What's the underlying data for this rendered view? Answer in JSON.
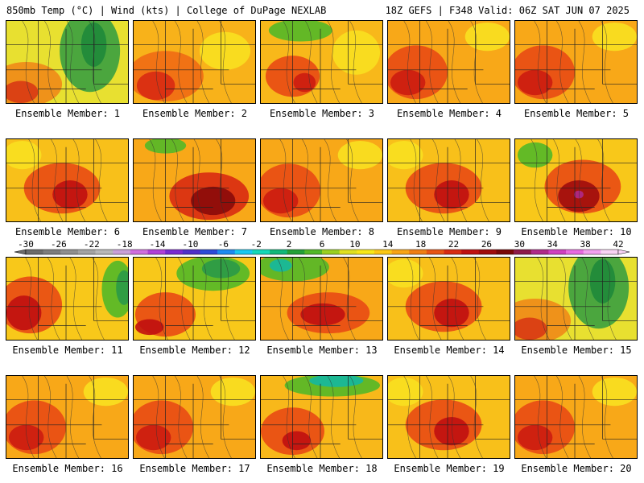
{
  "header": {
    "left": "850mb Temp (°C) | Wind (kts) | College of DuPage NEXLAB",
    "right": "18Z GEFS | F348 Valid: 06Z SAT JUN 07 2025"
  },
  "members": [
    {
      "label": "Ensemble Member: 1",
      "theme": "cool-ne"
    },
    {
      "label": "Ensemble Member: 2",
      "theme": "warm-sw"
    },
    {
      "label": "Ensemble Member: 3",
      "theme": "mixed"
    },
    {
      "label": "Ensemble Member: 4",
      "theme": "warm-w"
    },
    {
      "label": "Ensemble Member: 5",
      "theme": "warm-w"
    },
    {
      "label": "Ensemble Member: 6",
      "theme": "warm-c"
    },
    {
      "label": "Ensemble Member: 7",
      "theme": "hot-c"
    },
    {
      "label": "Ensemble Member: 8",
      "theme": "warm-w"
    },
    {
      "label": "Ensemble Member: 9",
      "theme": "warm-c"
    },
    {
      "label": "Ensemble Member: 10",
      "theme": "hot-se"
    },
    {
      "label": "Ensemble Member: 11",
      "theme": "cool-e"
    },
    {
      "label": "Ensemble Member: 12",
      "theme": "cool-n"
    },
    {
      "label": "Ensemble Member: 13",
      "theme": "cool-nw"
    },
    {
      "label": "Ensemble Member: 14",
      "theme": "warm-c"
    },
    {
      "label": "Ensemble Member: 15",
      "theme": "cool-ne"
    },
    {
      "label": "Ensemble Member: 16",
      "theme": "warm-w"
    },
    {
      "label": "Ensemble Member: 17",
      "theme": "warm-w"
    },
    {
      "label": "Ensemble Member: 18",
      "theme": "cool-n2"
    },
    {
      "label": "Ensemble Member: 19",
      "theme": "warm-c"
    },
    {
      "label": "Ensemble Member: 20",
      "theme": "warm-w"
    }
  ],
  "colorbar": {
    "tick_labels": [
      "-30",
      "-26",
      "-22",
      "-18",
      "-14",
      "-10",
      "-6",
      "-2",
      "2",
      "6",
      "10",
      "14",
      "18",
      "22",
      "26",
      "30",
      "34",
      "38",
      "42"
    ],
    "colors": [
      "#6b6b6b",
      "#7d7d7d",
      "#8f8f8f",
      "#a3a3a3",
      "#b8b8b8",
      "#c9a0d8",
      "#d06ee0",
      "#b040d8",
      "#7a2ad0",
      "#5030c8",
      "#2c4bd8",
      "#1d8af0",
      "#19c8f0",
      "#14d8b8",
      "#11b87a",
      "#23a038",
      "#52b828",
      "#9ad020",
      "#e0e020",
      "#f8e818",
      "#fcc814",
      "#f8a414",
      "#f07e14",
      "#e85414",
      "#d82a12",
      "#c01010",
      "#a00c0c",
      "#7a0808",
      "#8e1a4a",
      "#b02a8a",
      "#d040c0",
      "#e86ae0",
      "#f3a0ef",
      "#f8d2f4"
    ]
  }
}
